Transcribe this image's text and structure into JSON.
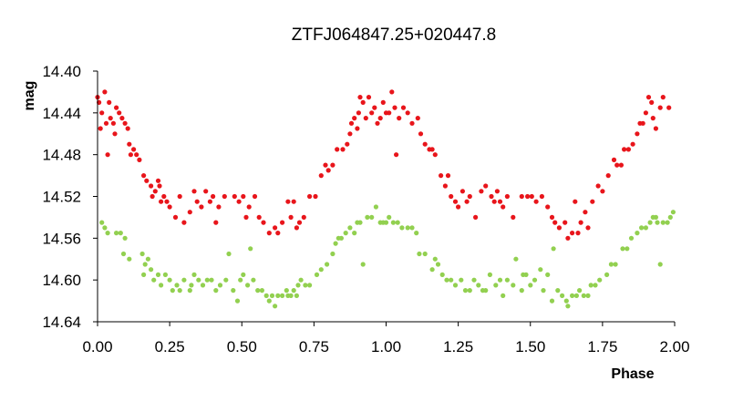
{
  "chart_data": {
    "type": "scatter",
    "title": "ZTFJ064847.25+020447.8",
    "xlabel": "Phase",
    "ylabel": "mag",
    "xlim": [
      0,
      2
    ],
    "ylim": [
      14.64,
      14.4
    ],
    "y_inverted": true,
    "x_ticks": [
      "0.00",
      "0.25",
      "0.50",
      "0.75",
      "1.00",
      "1.25",
      "1.50",
      "1.75",
      "2.00"
    ],
    "y_ticks": [
      "14.40",
      "14.44",
      "14.48",
      "14.52",
      "14.56",
      "14.60",
      "14.64"
    ],
    "grid": false,
    "legend": "none",
    "series": [
      {
        "color": "#e8151b",
        "points": [
          [
            0.0,
            14.425
          ],
          [
            0.005,
            14.43
          ],
          [
            0.01,
            14.455
          ],
          [
            0.015,
            14.44
          ],
          [
            0.025,
            14.42
          ],
          [
            0.03,
            14.45
          ],
          [
            0.035,
            14.48
          ],
          [
            0.04,
            14.43
          ],
          [
            0.045,
            14.445
          ],
          [
            0.055,
            14.45
          ],
          [
            0.06,
            14.46
          ],
          [
            0.065,
            14.435
          ],
          [
            0.075,
            14.44
          ],
          [
            0.085,
            14.445
          ],
          [
            0.095,
            14.45
          ],
          [
            0.105,
            14.455
          ],
          [
            0.11,
            14.47
          ],
          [
            0.115,
            14.48
          ],
          [
            0.125,
            14.475
          ],
          [
            0.135,
            14.48
          ],
          [
            0.145,
            14.485
          ],
          [
            0.16,
            14.5
          ],
          [
            0.17,
            14.505
          ],
          [
            0.185,
            14.51
          ],
          [
            0.19,
            14.52
          ],
          [
            0.2,
            14.515
          ],
          [
            0.21,
            14.505
          ],
          [
            0.215,
            14.51
          ],
          [
            0.22,
            14.525
          ],
          [
            0.23,
            14.52
          ],
          [
            0.24,
            14.525
          ],
          [
            0.25,
            14.53
          ],
          [
            0.27,
            14.54
          ],
          [
            0.285,
            14.52
          ],
          [
            0.3,
            14.545
          ],
          [
            0.32,
            14.535
          ],
          [
            0.335,
            14.515
          ],
          [
            0.345,
            14.525
          ],
          [
            0.36,
            14.53
          ],
          [
            0.375,
            14.515
          ],
          [
            0.39,
            14.525
          ],
          [
            0.4,
            14.52
          ],
          [
            0.41,
            14.545
          ],
          [
            0.42,
            14.53
          ],
          [
            0.44,
            14.52
          ],
          [
            0.475,
            14.52
          ],
          [
            0.49,
            14.525
          ],
          [
            0.505,
            14.52
          ],
          [
            0.515,
            14.54
          ],
          [
            0.525,
            14.53
          ],
          [
            0.545,
            14.52
          ],
          [
            0.56,
            14.54
          ],
          [
            0.575,
            14.545
          ],
          [
            0.595,
            14.555
          ],
          [
            0.615,
            14.55
          ],
          [
            0.625,
            14.555
          ],
          [
            0.64,
            14.545
          ],
          [
            0.66,
            14.525
          ],
          [
            0.67,
            14.54
          ],
          [
            0.68,
            14.525
          ],
          [
            0.69,
            14.55
          ],
          [
            0.7,
            14.545
          ],
          [
            0.715,
            14.54
          ],
          [
            0.735,
            14.52
          ],
          [
            0.755,
            14.52
          ],
          [
            0.775,
            14.5
          ],
          [
            0.79,
            14.49
          ],
          [
            0.8,
            14.495
          ],
          [
            0.815,
            14.49
          ],
          [
            0.83,
            14.475
          ],
          [
            0.85,
            14.475
          ],
          [
            0.865,
            14.47
          ],
          [
            0.875,
            14.46
          ],
          [
            0.88,
            14.45
          ],
          [
            0.89,
            14.445
          ],
          [
            0.9,
            14.455
          ],
          [
            0.905,
            14.44
          ],
          [
            0.91,
            14.425
          ],
          [
            0.92,
            14.43
          ],
          [
            0.93,
            14.445
          ],
          [
            0.94,
            14.425
          ],
          [
            0.95,
            14.44
          ],
          [
            0.96,
            14.435
          ],
          [
            0.97,
            14.45
          ],
          [
            0.98,
            14.445
          ],
          [
            0.99,
            14.43
          ],
          [
            1.0,
            14.44
          ],
          [
            1.01,
            14.44
          ],
          [
            1.02,
            14.42
          ],
          [
            1.03,
            14.435
          ],
          [
            1.035,
            14.48
          ],
          [
            1.045,
            14.445
          ],
          [
            1.06,
            14.435
          ],
          [
            1.075,
            14.44
          ],
          [
            1.09,
            14.45
          ],
          [
            1.11,
            14.445
          ],
          [
            1.12,
            14.46
          ],
          [
            1.135,
            14.47
          ],
          [
            1.15,
            14.475
          ],
          [
            1.16,
            14.475
          ],
          [
            1.17,
            14.48
          ],
          [
            1.19,
            14.5
          ],
          [
            1.205,
            14.51
          ],
          [
            1.215,
            14.5
          ],
          [
            1.225,
            14.52
          ],
          [
            1.24,
            14.525
          ],
          [
            1.25,
            14.53
          ],
          [
            1.265,
            14.515
          ],
          [
            1.28,
            14.525
          ],
          [
            1.29,
            14.52
          ],
          [
            1.31,
            14.54
          ],
          [
            1.33,
            14.515
          ],
          [
            1.345,
            14.51
          ],
          [
            1.365,
            14.52
          ],
          [
            1.375,
            14.525
          ],
          [
            1.385,
            14.515
          ],
          [
            1.395,
            14.525
          ],
          [
            1.405,
            14.53
          ],
          [
            1.42,
            14.52
          ],
          [
            1.44,
            14.54
          ],
          [
            1.47,
            14.52
          ],
          [
            1.49,
            14.52
          ],
          [
            1.505,
            14.52
          ],
          [
            1.52,
            14.525
          ],
          [
            1.54,
            14.52
          ],
          [
            1.56,
            14.53
          ],
          [
            1.575,
            14.54
          ],
          [
            1.585,
            14.545
          ],
          [
            1.6,
            14.55
          ],
          [
            1.62,
            14.545
          ],
          [
            1.63,
            14.56
          ],
          [
            1.645,
            14.555
          ],
          [
            1.655,
            14.525
          ],
          [
            1.665,
            14.555
          ],
          [
            1.675,
            14.545
          ],
          [
            1.69,
            14.535
          ],
          [
            1.7,
            14.55
          ],
          [
            1.715,
            14.525
          ],
          [
            1.735,
            14.51
          ],
          [
            1.75,
            14.515
          ],
          [
            1.77,
            14.5
          ],
          [
            1.79,
            14.485
          ],
          [
            1.8,
            14.49
          ],
          [
            1.815,
            14.49
          ],
          [
            1.825,
            14.475
          ],
          [
            1.84,
            14.475
          ],
          [
            1.855,
            14.47
          ],
          [
            1.87,
            14.46
          ],
          [
            1.88,
            14.45
          ],
          [
            1.89,
            14.45
          ],
          [
            1.9,
            14.44
          ],
          [
            1.91,
            14.425
          ],
          [
            1.92,
            14.43
          ],
          [
            1.925,
            14.445
          ],
          [
            1.935,
            14.455
          ],
          [
            1.95,
            14.435
          ],
          [
            1.96,
            14.425
          ],
          [
            1.98,
            14.435
          ]
        ]
      },
      {
        "color": "#92d050",
        "points": [
          [
            0.015,
            14.545
          ],
          [
            0.025,
            14.55
          ],
          [
            0.035,
            14.555
          ],
          [
            0.065,
            14.555
          ],
          [
            0.08,
            14.555
          ],
          [
            0.095,
            14.56
          ],
          [
            0.09,
            14.575
          ],
          [
            0.11,
            14.58
          ],
          [
            0.155,
            14.575
          ],
          [
            0.165,
            14.585
          ],
          [
            0.175,
            14.58
          ],
          [
            0.16,
            14.595
          ],
          [
            0.185,
            14.59
          ],
          [
            0.195,
            14.6
          ],
          [
            0.21,
            14.595
          ],
          [
            0.22,
            14.605
          ],
          [
            0.235,
            14.595
          ],
          [
            0.25,
            14.6
          ],
          [
            0.26,
            14.61
          ],
          [
            0.275,
            14.605
          ],
          [
            0.285,
            14.61
          ],
          [
            0.3,
            14.6
          ],
          [
            0.32,
            14.61
          ],
          [
            0.325,
            14.605
          ],
          [
            0.335,
            14.595
          ],
          [
            0.35,
            14.6
          ],
          [
            0.365,
            14.605
          ],
          [
            0.38,
            14.6
          ],
          [
            0.395,
            14.6
          ],
          [
            0.41,
            14.61
          ],
          [
            0.425,
            14.605
          ],
          [
            0.445,
            14.6
          ],
          [
            0.455,
            14.575
          ],
          [
            0.47,
            14.61
          ],
          [
            0.485,
            14.62
          ],
          [
            0.495,
            14.6
          ],
          [
            0.505,
            14.595
          ],
          [
            0.52,
            14.605
          ],
          [
            0.53,
            14.57
          ],
          [
            0.54,
            14.6
          ],
          [
            0.555,
            14.61
          ],
          [
            0.57,
            14.61
          ],
          [
            0.585,
            14.615
          ],
          [
            0.595,
            14.62
          ],
          [
            0.605,
            14.615
          ],
          [
            0.615,
            14.625
          ],
          [
            0.625,
            14.615
          ],
          [
            0.64,
            14.615
          ],
          [
            0.655,
            14.61
          ],
          [
            0.66,
            14.615
          ],
          [
            0.67,
            14.615
          ],
          [
            0.68,
            14.61
          ],
          [
            0.69,
            14.615
          ],
          [
            0.695,
            14.605
          ],
          [
            0.705,
            14.6
          ],
          [
            0.72,
            14.605
          ],
          [
            0.735,
            14.605
          ],
          [
            0.76,
            14.595
          ],
          [
            0.775,
            14.59
          ],
          [
            0.795,
            14.585
          ],
          [
            0.815,
            14.575
          ],
          [
            0.825,
            14.565
          ],
          [
            0.835,
            14.56
          ],
          [
            0.845,
            14.56
          ],
          [
            0.86,
            14.555
          ],
          [
            0.875,
            14.55
          ],
          [
            0.89,
            14.555
          ],
          [
            0.9,
            14.545
          ],
          [
            0.91,
            14.545
          ],
          [
            0.92,
            14.585
          ],
          [
            0.935,
            14.54
          ],
          [
            0.95,
            14.54
          ],
          [
            0.965,
            14.53
          ],
          [
            0.98,
            14.545
          ],
          [
            0.99,
            14.545
          ],
          [
            1.0,
            14.545
          ],
          [
            1.01,
            14.54
          ],
          [
            1.025,
            14.545
          ],
          [
            1.04,
            14.545
          ],
          [
            1.055,
            14.55
          ],
          [
            1.075,
            14.55
          ],
          [
            1.09,
            14.55
          ],
          [
            1.105,
            14.555
          ],
          [
            1.115,
            14.575
          ],
          [
            1.135,
            14.575
          ],
          [
            1.16,
            14.59
          ],
          [
            1.17,
            14.58
          ],
          [
            1.18,
            14.585
          ],
          [
            1.195,
            14.595
          ],
          [
            1.21,
            14.6
          ],
          [
            1.225,
            14.6
          ],
          [
            1.24,
            14.605
          ],
          [
            1.26,
            14.6
          ],
          [
            1.275,
            14.61
          ],
          [
            1.29,
            14.61
          ],
          [
            1.305,
            14.6
          ],
          [
            1.32,
            14.605
          ],
          [
            1.335,
            14.61
          ],
          [
            1.345,
            14.61
          ],
          [
            1.36,
            14.595
          ],
          [
            1.38,
            14.605
          ],
          [
            1.395,
            14.6
          ],
          [
            1.405,
            14.615
          ],
          [
            1.42,
            14.6
          ],
          [
            1.44,
            14.605
          ],
          [
            1.45,
            14.58
          ],
          [
            1.47,
            14.61
          ],
          [
            1.475,
            14.595
          ],
          [
            1.485,
            14.595
          ],
          [
            1.5,
            14.605
          ],
          [
            1.515,
            14.6
          ],
          [
            1.535,
            14.59
          ],
          [
            1.545,
            14.61
          ],
          [
            1.56,
            14.595
          ],
          [
            1.575,
            14.62
          ],
          [
            1.58,
            14.57
          ],
          [
            1.595,
            14.61
          ],
          [
            1.61,
            14.615
          ],
          [
            1.625,
            14.62
          ],
          [
            1.63,
            14.625
          ],
          [
            1.645,
            14.615
          ],
          [
            1.66,
            14.615
          ],
          [
            1.67,
            14.61
          ],
          [
            1.685,
            14.615
          ],
          [
            1.7,
            14.615
          ],
          [
            1.71,
            14.605
          ],
          [
            1.725,
            14.605
          ],
          [
            1.74,
            14.6
          ],
          [
            1.765,
            14.595
          ],
          [
            1.78,
            14.585
          ],
          [
            1.795,
            14.585
          ],
          [
            1.82,
            14.57
          ],
          [
            1.835,
            14.57
          ],
          [
            1.85,
            14.56
          ],
          [
            1.87,
            14.555
          ],
          [
            1.885,
            14.55
          ],
          [
            1.9,
            14.55
          ],
          [
            1.915,
            14.545
          ],
          [
            1.925,
            14.54
          ],
          [
            1.935,
            14.54
          ],
          [
            1.94,
            14.545
          ],
          [
            1.95,
            14.585
          ],
          [
            1.96,
            14.545
          ],
          [
            1.975,
            14.545
          ],
          [
            1.985,
            14.54
          ],
          [
            1.995,
            14.535
          ]
        ]
      }
    ]
  }
}
